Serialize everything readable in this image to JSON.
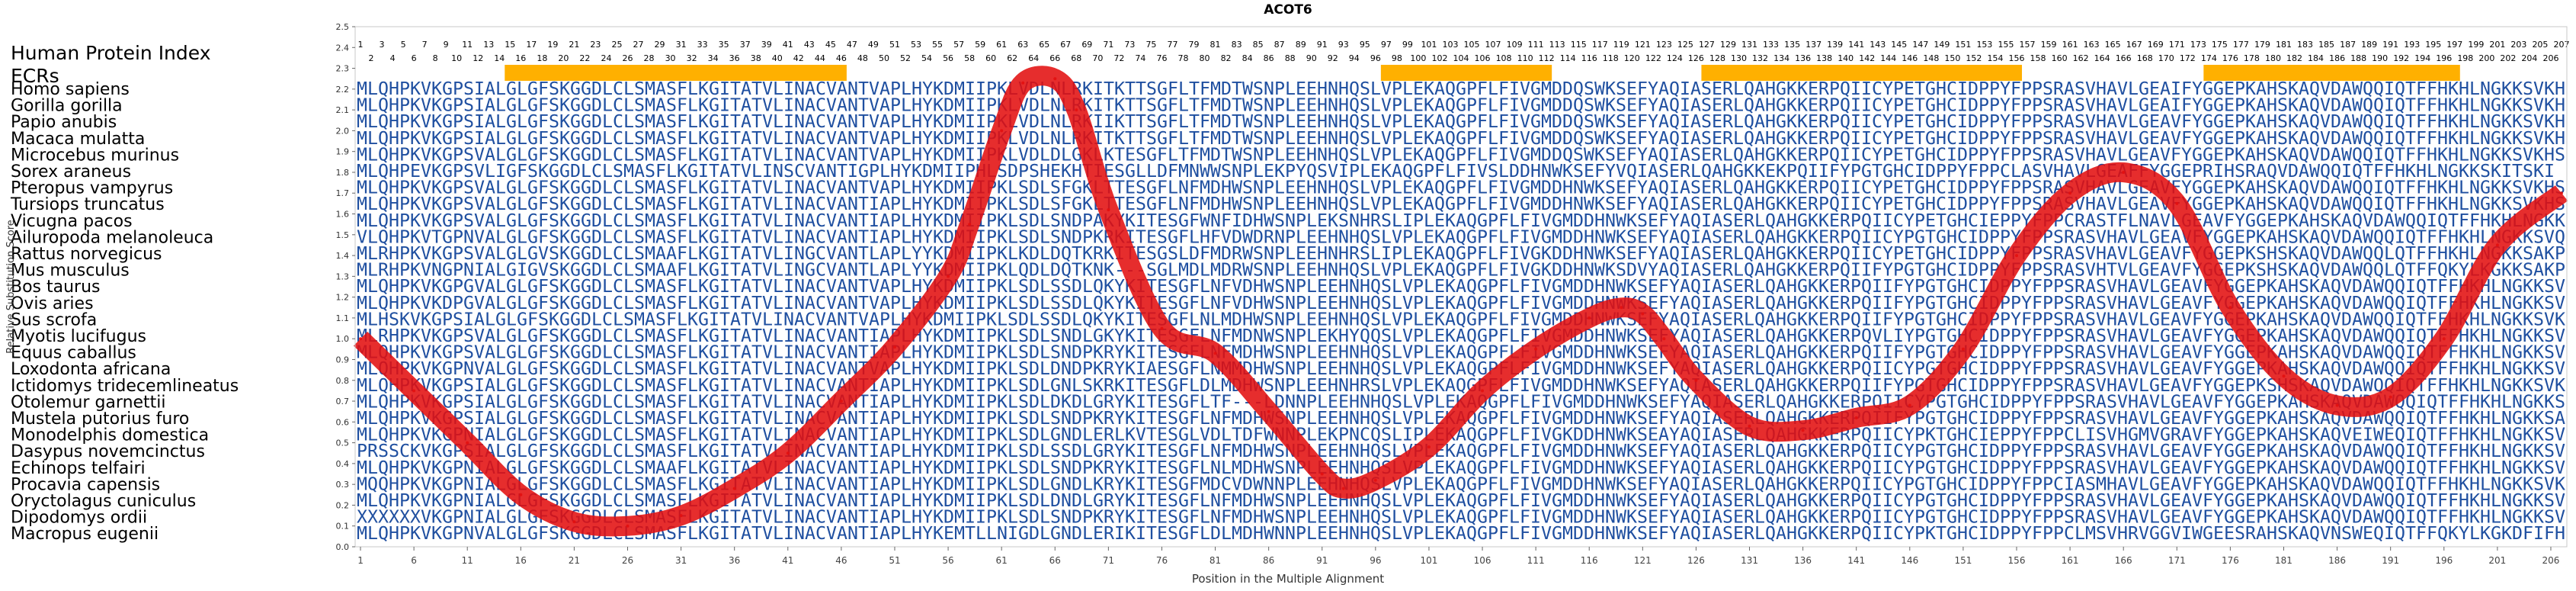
{
  "chart_data": {
    "type": "line",
    "title": "ACOT6",
    "xlabel": "Position in the Multiple Alignment",
    "ylabel": "Relative Substitution Score",
    "xlim": [
      1,
      207
    ],
    "ylim": [
      0.0,
      2.5
    ],
    "y_ticks": [
      "0.0",
      "0.1",
      "0.2",
      "0.3",
      "0.4",
      "0.5",
      "0.6",
      "0.7",
      "0.8",
      "0.9",
      "1.0",
      "1.1",
      "1.2",
      "1.3",
      "1.4",
      "1.5",
      "1.6",
      "1.7",
      "1.8",
      "1.9",
      "2.0",
      "2.1",
      "2.2",
      "2.3",
      "2.4",
      "2.5"
    ],
    "x_ticks": [
      1,
      6,
      11,
      16,
      21,
      26,
      31,
      36,
      41,
      46,
      51,
      56,
      61,
      66,
      71,
      76,
      81,
      86,
      91,
      96,
      101,
      106,
      111,
      116,
      121,
      126,
      131,
      136,
      141,
      146,
      151,
      156,
      161,
      166,
      171,
      176,
      181,
      186,
      191,
      196,
      201,
      206
    ],
    "grid": false,
    "track_labels": [
      "Human Protein Index",
      "ECRs"
    ],
    "ecr_segments": [
      [
        15,
        46
      ],
      [
        97,
        112
      ],
      [
        127,
        156
      ],
      [
        174,
        197
      ]
    ],
    "line_color": "#e21010",
    "ecr_color": "#ffb000",
    "residue_color": "#1f4fa0",
    "series": [
      {
        "x": [
          1,
          6,
          11,
          16,
          21,
          26,
          31,
          36,
          41,
          46,
          51,
          56,
          58,
          61,
          63,
          66,
          68,
          71,
          76,
          81,
          86,
          91,
          93,
          96,
          101,
          106,
          111,
          116,
          119,
          121,
          123,
          126,
          131,
          136,
          141,
          146,
          151,
          156,
          161,
          166,
          171,
          176,
          181,
          186,
          191,
          196,
          201,
          207
        ],
        "values": [
          1.0,
          0.75,
          0.5,
          0.25,
          0.12,
          0.1,
          0.15,
          0.28,
          0.45,
          0.7,
          0.96,
          1.3,
          1.55,
          2.0,
          2.23,
          2.25,
          2.1,
          1.62,
          1.05,
          0.93,
          0.65,
          0.35,
          0.28,
          0.32,
          0.48,
          0.75,
          0.95,
          1.1,
          1.15,
          1.12,
          1.0,
          0.8,
          0.58,
          0.56,
          0.62,
          0.68,
          0.95,
          1.4,
          1.7,
          1.8,
          1.65,
          1.15,
          0.82,
          0.68,
          0.72,
          1.0,
          1.45,
          1.7
        ]
      }
    ],
    "species": [
      "Homo sapiens",
      "Gorilla gorilla",
      "Papio anubis",
      "Macaca mulatta",
      "Microcebus murinus",
      "Sorex araneus",
      "Pteropus vampyrus",
      "Tursiops truncatus",
      "Vicugna pacos",
      "Ailuropoda melanoleuca",
      "Rattus norvegicus",
      "Mus musculus",
      "Bos taurus",
      "Ovis aries",
      "Sus scrofa",
      "Myotis lucifugus",
      "Equus caballus",
      "Loxodonta africana",
      "Ictidomys tridecemlineatus",
      "Otolemur garnettii",
      "Mustela putorius furo",
      "Monodelphis domestica",
      "Dasypus novemcinctus",
      "Echinops telfairi",
      "Procavia capensis",
      "Oryctolagus cuniculus",
      "Dipodomys ordii",
      "Macropus eugenii"
    ],
    "sequences": [
      "MLQHPKVKGPSIALGLGFSKGGDLCLSMASFLKGITATVLINACVANTVAPLHYKDMIIPKLVDLNLRKITKTTSGFLTFMDTWSNPLEEHNHQSLVPLEKAQGPFLFIVGMDDQSWKSEFYAQIASERLQAHGKKERPQIICYPETGHCIDPPYFPPSRASVHAVLGEAIFYGGEPKAHSKAQVDAWQQIQTFFHKHLNGKKSVKHSKI",
      "MLQHPKVKGPSIALGLGFSKGGDLCLSMASFLKGITATVLINACVANTVAPLHYKDMIIPKLVDLNLRKITKTTSGFLTFMDTWSNPLEEHNHQSLVPLEKAQGPFLFIVGMDDQSWKSEFYAQIASERLQAHGKKERPQIICYPETGHCIDPPYFPPSRASVHAVLGEAIFYGGEPKAHSKAQVDAWQQIQTFFHKHLNGKKSVKHSKI",
      "MLQHPKVKGPSIALGLGFSKGGDLCLSMASFLKGITATVLINACVANTVAPLHYKDMIIPKLVDLNLRKIIKTTSGFLTFMDTWSNPLEEHNHQSLVPLEKAQGPFLFIVGMDDQSWKSEFYAQIASERLQAHGKKERPQIICYPETGHCIDPPYFPPSRASVHAVLGEAVFYGGEPKAHSKAQVDAWQQIQTFFHKHLNGKKSVKHSKI",
      "MLQHPKVKGPSIALGLGFSKGGDLCLSMASFLKGITATVLINACVANTVAPLHYKDMIIPKLVDLNLRKITKTTSGFLTFMDTWSNPLEEHNHQSLVPLEKAQGPFLFIVGMDDQSWKSEFYAQIASERLQAHGKKERPQIICYPETGHCIDPPYFPPSRASVHAVLGEAVFYGGEPKAHSKAQVDAWQQIQTFFHKHLNGKKSVKHSKI",
      "MLQHPKVKGPSVALGLGFSKGGDLCLSMASFLKGITATVLINACVANTVAPLHYKDMIIPKLVDLDLGKLKTESGFLTFMDTWSNPLEEHNHQSLVPLEKAQGPFLFIVGMDDQSWKSEFYAQIASERLQAHGKKERPQIICYPETGHCIDPPYFPPSRASVHAVLGEAVFYGGEPKAHSKAQVDAWQQIQTFFHKHLNGKKSVKHSKI",
      "MLQHPEVKGPSVLIGFSKGGDLCLSMASFLKGITATVLINSCVANTIGPLHYKDMIIPHLSDPSHEKHTIESGLLDFMNWWSNPLEKPYQSVIPLEKAQGPFLFIVSLDDHNWKSEFYVQIASERLQAHGKKEKPQIIFYPGTGHCIDPPYFPPCLASVHAVLGEAFFYGGEPRIHSRAQVDAWQQIQTFFHKHLNGKKSKITSKI",
      "MLQHPKVKGPSVALGLGFSKGGDLCLSMASFLKGITATVLINACVANTVAPLHYKDMIIPKLSDLSFGKLTTESGFLNFMDHWSNPLEEHNHQSLVPLEKAQGPFLFIVGMDDHNWKSEFYAQIASERLQAHGKKERPQIICYPETGHCIDPPYFPPSRASVHAVLGEAVFYGGEPKAHSKAQVDAWQQIQTFFHKHLNGKKSVKHSKI",
      "MLQHPKVKGPSVALGLGFSKGGDLCLSMASFLKGITATVLINACVANTIAPLHYKDMIIPKLSDLSFGKLTTESGFLNFMDHWSNPLEEHNHQSLVPLEKAQGPFLFIVGMDDHNWKSEFYAQIASERLQAHGKKERPQIICYPETGHCIDPPYFPPSRASVHAVLGEAVFYGGEPKAHSKAQVDAWQQIQTFFHKHLNGKKSVKHSKI",
      "MLQHPKVKGPSVALGLGFSKGGDLCLSMASFLKGITATVLINACVANTIAPLHYKDMIIPKLSDLSNDPAKYKITESGFWNFIDHWSNPLEKSNHRSLIPLEKAQGPFLFIVGMDDHNWKSEFYAQIASERLQAHGKKERPQIICYPETGHCIEPPYFPPCRASTFLNAVLGEAVFYGGEPKAHSKAQVDAWQQIQTFFHKHLNGKKSVKHSKI",
      "VLQHPKVTGPNVALGLGFSKGGDLCLSMASFLKGITATVLINACVANTIAPLHYKDMIIPKLSDLSNDPKRKITESGFLHFVDWDRNPLEEHNHQSLVPLEKAQGPFLFIVGMDDHNWKSEFYAQIASERLQAHGKKERPQIICYPGTGHCIDPPYFPPSRASVHAVLGEAVFYGGEPKAHSKAQVDAWQQIQTFFHKHLNGKKSVQSSKI",
      "MLRHPKVKGPSVALGLGVSKGGDLCLSMAAFLKGITATVLINGCVANTLAPLYYKDMIIPKLKDLDQTKRKITESGSLDFMDRWSNPLEEHNHRSLIPLEKAQGPFLFIVGKDDHNWKSEFYAQIASERLQAHGKKERPQIICYPETGHCIDPPYFPPSRASVHAVLGEAVFYGGEPKSHSKAQVDAWQQLQTFFHKHLNGKKSAKPSKM",
      "MLRHPKVNGPNIALGIGVSKGGDLCLSMAAFLKGITATVLINGCVANTLAPLYYKDMIIPKLQDLDQTKNK---SGLMDLMDRWSNPLEEHNHQSLVPLEKAQGPFLFIVGKDDHNWKSDVYAQIASERLQAHGKKERPQIIFYPGTGHCIDPPYFPPSRASVHTVLGEAVFYGGEPKSHSKAQVDAWQQLQTFFQKYLKGKKSAKPSKM",
      "MLQHPKVKGPGVALGLGFSKGGDLCLSMASFLKGITATVLINACVANTVAPLHYKDMIIPKLSDLSSDLQKYKITESGFLNFVDHWSNPLEEHNHQSLVPLEKAQGPFLFIVGMDDHNWKSEFYAQIASERLQAHGKKERPQIIFYPGTGHCIDPPYFPPSRASVHAVLGEAVFYGGEPKAHSKAQVDAWQQIQTFFHKHLNGKKSVKPSKI",
      "MLQHPKVKDPGVALGLGFSKGGDLCLSMASFLKGITATVLINACVANTVAPLHYKDMIIPKLSDLSSDLQKYKITESGFLNFVDHWSNPLEEHNHQSLVPLEKAQGPFLFIVGMDDHNWKSEFYAQIASERLQAHGKKERPQIIFYPGTGHCIDPPYFPPSRASVHAVLGEAVFYGGEPKAHSKAQVDAWQQIQTFFHKHLNGKKSVKPSKI",
      "MLHSKVKGPSIALGLGFSKGGDLCLSMASFLKGITATVLINACVANTVAPLHYKDMIIPKLSDLSSDLQKYKITESGFLNLMDHWSNPLEEHNHQSLVPLEKAQGPFLFIVGMDDHNWKSEFYAQIASERLQAHGKKERPQIIFYPGTGHCIDPPYFPPSRASVHAVLGEAVFYGGEPKAHSKAQVDAWQQIQTFFHKHLNGKKSVKPSKI",
      "MLRHPKVKGPSVALGLGFSKGGDLCLSMASFLKGITATVLINACVANTIAPLHYKDMIIPKLSDLSNDLGKYKITESGFLNFMDNWSNPLEKHYQQSLVPLEKAQGPFLFIVGMDDHNWKSEFYAQIASERLQAHGKKERPQVLIYPGTGHCIDPPYFPPSRASVHAVLGEAVFYGGEPKAHSKAQVDAWQQIQTFFHKHLNGKKSVN-SKL",
      "MLQHPKVKGPSVALGLGFSKGGDLCLSMASFLKGITATVLINACVANTIAPLHYKDMIIPKLSDLSNDPKRYKITESGFLNFMDHWSNPLEEHNHQSLVPLEKAQGPFLFIVGMDDHNWKSEFYAQIASERLQAHGKKERPQIIFYPGTGHCIDPPYFPPSRASVHAVLGEAVFYGGEPKAHSKAQVDAWQQIQTFFHKHLNGKKSVKPSKI",
      "MLQHPKVKGPNVALGLGFSKGGDLCLSMASFLKGITATVLINACVANTVAPLHYKDMIIPKLSDLDNDPKRYKIAESGFLNMMDHWSNPLEEHNHQSLVPLEKAQGPFLFIVGMDDHNWKSEFYAQIASERLQAHGKKERPQIICYPGTGHCIDPPYFPPSRASVHAVLGEAVFYGGEPKAHSKAQVDAWQQIQTFFHKHLNGKKSVKPSKI",
      "MLQHPKVKGPSIALGLGFSKGGDLCLSMASFLKGITATVLINACVANTIAPLHYKDMIIPKLSDLGNLSKRKITESGFLDLMDHWSNPLEEHNHRSLVPLEKAQGPFLFIVGMDDHNWKSEFYAQIASERLQAHGKKERPQIIFYPGTGHCIDPPYFPPSRASVHAVLGEAVFYGGEPKSHSKAQVDAWQQIQTFFHKHLNGKKSVKPSKI",
      "MLQHPKVKGPSIALGLGFSKGGDLCLSMASFLKGITATVLINACVANTIAPLHYKDMIIPKLSDLDKDLGRYKITESGFLTF---LDNNPLEEHNHQSLVPLEKAQGPFLFIVGMDDHNWKSEFYAQIASERLQAHGKKERPQIICYPGTGHCIDPPYFPPSRASVHAVLGEAVFYGGEPKAHSKAQVDAWQQIQTFFHKHLNGKKSVKPSKI",
      "MLQHPKVKGPSIALGLGFSKGGDLCLSMASFLKGITATVLINACVANTIAPLHYKDMIIPKLSDLSNDPKRYKITESGFLNFMDHWSNPLEEHNHQSLVPLEKAQGPFLFIVGMDDHNWKSEFYAQIASERLQAHGKKERPQIIFYPGTGHCIDPPYFPPSRASVHAVLGEAVFYGGEPKAHSKAQVDAWQQIQTFFHKHLNGKKSAKPSKI",
      "MLQHPKVKGPNIALGLGFSKGGDLCLSMASFLKGITATVLINACVANTIAPLHYKDMIIPKLSDLGNDLERLKVTESGLVDLTDFWNNPLEKPNCQSLIPLEKAQGPFLFIVGKDDHNWKSEAYAQIASERLQAHGKKERPQIICYPKTGHCIEPPYFPPCLISVHGMVGRAVFYGGEPKAHSKAQVEIWEQIQTFFHKHLNGKKSVKPSKI",
      "PRSSCKVKGPSIALGLGFSKGGDLCLSMASFLKGITATVLINACVANTIAPLHYKDMIIPKLSDLSSDLGRYKITESGFLNFMDHWSNPLEEHNHQSLVPLEKAQGPFLFIVGMDDHNWKSEFYAQIASERLQAHGKKERPQIICYPGTGHCIDPPYFPPSRASVHAVLGEAVFYGGEPKAHSKAQVDAWQQIQTFFHKHLNGKKSVKPSKI",
      "MLQHPKVKGPNIALGLGFSKGGDLCLSMAAFLKGITATVLINACVANTIAPLHYKDMIIPKLSDLSNDPKRYKITESGFLNLMDHWSNPLEEHNHQSLVPLEKAQGPFLFIVGMDDHNWKSEFYAQIASERLQAHGKKERPQIICYPGTGHCIDPPYFPPSRASVHAVLGEAVFYGGEPKAHSKAQVDAWQQIQTFFHKHLNGKKSVKPSKI",
      "MQQHPKVKGPNIALGLGFSKGGDLCLSMASFLKGITATVLINACVANTIAPLHYKDMIIPKLSDLGNDLKRYKITESGFMDCVDWNNPLEEHNHQSLVPLEKAQGPFLFIVGMDDHNWKSEFYAQIASERLQAHGKKERPQIICYPGTGHCIDPPYFPPCIASMHAVLGEAVFYGGEPKAHSKAQVDAWQQIQTFFHKHLNGKKSVKPSKI",
      "MLQHPKVKGPNIALGLGFSKGGDLCLSMASFLKGITATVLINACVANTIAPLHYKDMIIPKLSDLDNDLGRYKITESGFLNFMDHWSNPLEEHNHQSLVPLEKAQGPFLFIVGMDDHNWKSEFYAQIASERLQAHGKKERPQIICYPGTGHCIDPPYFPPSRASVHAVLGEAVFYGGEPKAHSKAQVDAWQQIQTFFHKHLNGKKSVKPSKI",
      "XXXXXXVKGPNIALGLGFSKGGDLCLSMASFLKGITATVLINACVANTIAPLHYKDMIIPKLSDLSNDPKRYKITESGFLNFMDHWSNPLEEHNHQSLVPLEKAQGPFLFIVGMDDHNWKSEFYAQIASERLQAHGKKERPQIICYPGTGHCIDPPYFPPSRASVHAVLGEAVFYGGEPKAHSKAQVDAWQQIQTFFHKHLNGKKSVKPSKI",
      "MLQHPKVKGPNVALGLGFSKGGDLCLSMASFLKGITATVLINACVANTIAPLHYKEMTLLNIGDLGNDLERIKITESGFLDLMDHWNNPLEEHNHQSLVPLEKAQGPFLFIVGMDDHNWKSEFYAQIASERLQAHGKKERPQIICYPKTGHCIDPPYFPPCLMSVHRVGGVIWGEESRAHSKAQVNSWEQIQTFFQKYLKGKDFIFHNKI"
    ]
  }
}
